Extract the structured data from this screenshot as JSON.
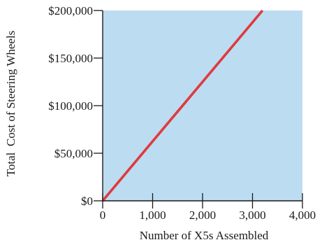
{
  "chart_data": {
    "type": "line",
    "title": "",
    "xlabel": "Number of X5s Assembled",
    "ylabel": "Total  Cost of Steering Wheels",
    "xlim": [
      0,
      4000
    ],
    "ylim": [
      0,
      200000
    ],
    "x_ticks": [
      0,
      1000,
      2000,
      3000,
      4000
    ],
    "x_tick_labels": [
      "0",
      "1,000",
      "2,000",
      "3,000",
      "4,000"
    ],
    "y_ticks": [
      0,
      50000,
      100000,
      150000,
      200000
    ],
    "y_tick_labels": [
      "$0",
      "$50,000",
      "$100,000",
      "$150,000",
      "$200,000"
    ],
    "grid": false,
    "legend": "none",
    "colors": {
      "plot_background": "#bcdcf1",
      "line": "#e03a3e",
      "axis": "#1a1a1a"
    },
    "series": [
      {
        "x": [
          0,
          3200
        ],
        "y": [
          0,
          200000
        ]
      }
    ]
  }
}
